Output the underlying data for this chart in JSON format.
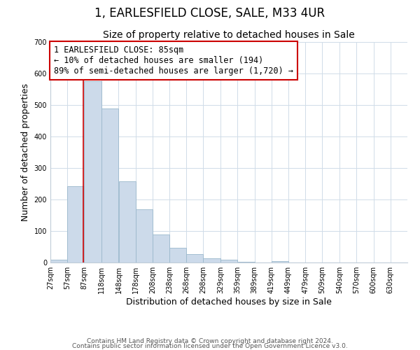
{
  "title": "1, EARLESFIELD CLOSE, SALE, M33 4UR",
  "subtitle": "Size of property relative to detached houses in Sale",
  "xlabel": "Distribution of detached houses by size in Sale",
  "ylabel": "Number of detached properties",
  "bar_color": "#ccdaea",
  "bar_edge_color": "#9ab8cc",
  "bar_left_edges": [
    27,
    57,
    87,
    118,
    148,
    178,
    208,
    238,
    268,
    298,
    329,
    359,
    389,
    419,
    449,
    479,
    509,
    540,
    570,
    600
  ],
  "bar_widths": [
    30,
    30,
    31,
    30,
    30,
    30,
    30,
    30,
    30,
    31,
    30,
    30,
    30,
    30,
    30,
    30,
    31,
    30,
    30,
    30
  ],
  "bar_heights": [
    10,
    243,
    575,
    490,
    258,
    170,
    88,
    47,
    27,
    13,
    8,
    2,
    0,
    5,
    0,
    0,
    0,
    0,
    0,
    0
  ],
  "x_tick_labels": [
    "27sqm",
    "57sqm",
    "87sqm",
    "118sqm",
    "148sqm",
    "178sqm",
    "208sqm",
    "238sqm",
    "268sqm",
    "298sqm",
    "329sqm",
    "359sqm",
    "389sqm",
    "419sqm",
    "449sqm",
    "479sqm",
    "509sqm",
    "540sqm",
    "570sqm",
    "600sqm",
    "630sqm"
  ],
  "x_tick_positions": [
    27,
    57,
    87,
    118,
    148,
    178,
    208,
    238,
    268,
    298,
    329,
    359,
    389,
    419,
    449,
    479,
    509,
    540,
    570,
    600,
    630
  ],
  "xlim": [
    27,
    660
  ],
  "ylim": [
    0,
    700
  ],
  "yticks": [
    0,
    100,
    200,
    300,
    400,
    500,
    600,
    700
  ],
  "vline_x": 85,
  "vline_color": "#cc0000",
  "annotation_text": "1 EARLESFIELD CLOSE: 85sqm\n← 10% of detached houses are smaller (194)\n89% of semi-detached houses are larger (1,720) →",
  "annotation_box_color": "#ffffff",
  "annotation_box_edge_color": "#cc0000",
  "footer_line1": "Contains HM Land Registry data © Crown copyright and database right 2024.",
  "footer_line2": "Contains public sector information licensed under the Open Government Licence v3.0.",
  "background_color": "#ffffff",
  "plot_background_color": "#ffffff",
  "grid_color": "#d0dce8",
  "title_fontsize": 12,
  "subtitle_fontsize": 10,
  "axis_label_fontsize": 9,
  "tick_fontsize": 7,
  "annotation_fontsize": 8.5,
  "footer_fontsize": 6.5
}
